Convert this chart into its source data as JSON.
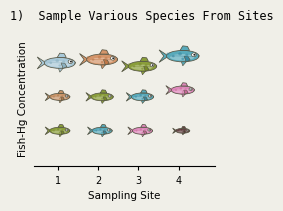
{
  "title": "1)  Sample Various Species From Sites",
  "xlabel": "Sampling Site",
  "ylabel": "Fish-Hg Concentration",
  "xlim": [
    0.4,
    4.9
  ],
  "ylim": [
    0.5,
    4.5
  ],
  "xticks": [
    1,
    2,
    3,
    4
  ],
  "background_color": "#f0efe8",
  "fish": [
    {
      "site": 1.05,
      "y": 3.55,
      "color": "#a8c8d8",
      "body_color": "#8ab0c0",
      "size": 1.0,
      "spots": true
    },
    {
      "site": 1.05,
      "y": 2.55,
      "color": "#c8956a",
      "body_color": "#b07848",
      "size": 0.65,
      "spots": true
    },
    {
      "site": 1.05,
      "y": 1.55,
      "color": "#8a9e3a",
      "body_color": "#788a28",
      "size": 0.65,
      "spots": true
    },
    {
      "site": 2.1,
      "y": 3.65,
      "color": "#d4956a",
      "body_color": "#c07848",
      "size": 1.0,
      "spots": true
    },
    {
      "site": 2.1,
      "y": 2.55,
      "color": "#8a9e3a",
      "body_color": "#788a28",
      "size": 0.72,
      "spots": true
    },
    {
      "site": 2.1,
      "y": 1.55,
      "color": "#58aabb",
      "body_color": "#3888a0",
      "size": 0.65,
      "spots": true
    },
    {
      "site": 3.1,
      "y": 3.45,
      "color": "#8a9e3a",
      "body_color": "#788a28",
      "size": 0.92,
      "spots": true
    },
    {
      "site": 3.1,
      "y": 2.55,
      "color": "#58aabb",
      "body_color": "#3888a0",
      "size": 0.72,
      "spots": true
    },
    {
      "site": 3.1,
      "y": 1.55,
      "color": "#dd88bb",
      "body_color": "#cc6699",
      "size": 0.65,
      "spots": true
    },
    {
      "site": 4.1,
      "y": 3.75,
      "color": "#58aabb",
      "body_color": "#3888a0",
      "size": 1.05,
      "spots": true
    },
    {
      "site": 4.1,
      "y": 2.75,
      "color": "#dd88bb",
      "body_color": "#cc6699",
      "size": 0.75,
      "spots": true
    },
    {
      "site": 4.1,
      "y": 1.55,
      "color": "#664444",
      "body_color": "#553333",
      "size": 0.45,
      "spots": false
    }
  ],
  "title_fontsize": 8.5,
  "axis_fontsize": 7.5,
  "tick_fontsize": 7
}
